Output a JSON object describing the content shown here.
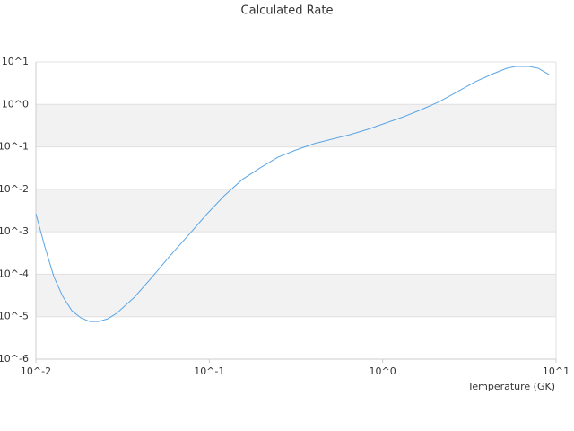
{
  "chart_data": {
    "type": "line",
    "title": "Calculated Rate",
    "xlabel": "Temperature (GK)",
    "xscale": "log",
    "yscale": "log",
    "grid": true,
    "xlim": [
      0.01,
      10
    ],
    "ylim": [
      1e-06,
      10
    ],
    "xticks": [
      {
        "value": 0.01,
        "label": "10^-2"
      },
      {
        "value": 0.1,
        "label": "10^-1"
      },
      {
        "value": 1,
        "label": "10^0"
      },
      {
        "value": 10,
        "label": "10^1"
      }
    ],
    "yticks": [
      {
        "value": 1e-06,
        "label": "10^-6"
      },
      {
        "value": 1e-05,
        "label": "10^-5"
      },
      {
        "value": 0.0001,
        "label": "10^-4"
      },
      {
        "value": 0.001,
        "label": "10^-3"
      },
      {
        "value": 0.01,
        "label": "10^-2"
      },
      {
        "value": 0.1,
        "label": "10^-1"
      },
      {
        "value": 1,
        "label": "10^0"
      },
      {
        "value": 10,
        "label": "10^1"
      }
    ],
    "color": "#5aa5e6",
    "x": [
      0.01,
      0.01127,
      0.01269,
      0.01429,
      0.0161,
      0.01815,
      0.02043,
      0.02302,
      0.02594,
      0.02922,
      0.03708,
      0.04707,
      0.05973,
      0.0758,
      0.0962,
      0.122,
      0.1549,
      0.1965,
      0.2494,
      0.3165,
      0.4017,
      0.5098,
      0.647,
      0.821,
      1.042,
      1.322,
      1.677,
      2.128,
      2.7,
      3.427,
      4.349,
      5.197,
      5.857,
      7.0,
      7.88,
      9.1
    ],
    "values": [
      0.00267,
      0.00044,
      8.8e-05,
      3e-05,
      1.39e-05,
      9.4e-06,
      7.7e-06,
      7.7e-06,
      8.9e-06,
      1.2e-05,
      2.9e-05,
      8.8e-05,
      0.00028,
      0.00083,
      0.00254,
      0.00706,
      0.017,
      0.032,
      0.0574,
      0.0847,
      0.119,
      0.152,
      0.194,
      0.259,
      0.365,
      0.513,
      0.757,
      1.17,
      2.0,
      3.43,
      5.31,
      7.11,
      7.84,
      7.84,
      7.11,
      5.06
    ]
  }
}
